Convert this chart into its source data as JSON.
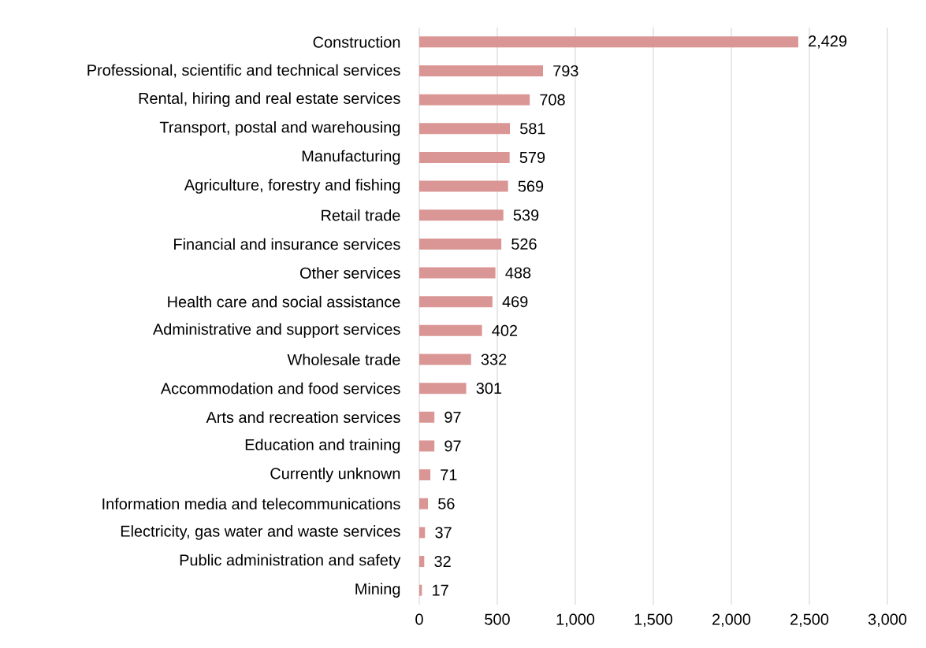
{
  "chart_data": {
    "type": "bar",
    "orientation": "horizontal",
    "value_labels": [
      "2,429",
      "793",
      "708",
      "581",
      "579",
      "569",
      "539",
      "526",
      "488",
      "469",
      "402",
      "332",
      "301",
      "97",
      "97",
      "71",
      "56",
      "37",
      "32",
      "17"
    ],
    "grid": "x",
    "color": "#da9694",
    "categories": [
      "Construction",
      "Professional, scientific and technical services",
      "Rental, hiring and real estate services",
      "Transport, postal and warehousing",
      "Manufacturing",
      "Agriculture, forestry and fishing",
      "Retail trade",
      "Financial and insurance services",
      "Other services",
      "Health care and social assistance",
      "Administrative and support services",
      "Wholesale trade",
      "Accommodation and food services",
      "Arts and recreation services",
      "Education and training",
      "Currently unknown",
      "Information media and telecommunications",
      "Electricity, gas water and waste services",
      "Public administration and safety",
      "Mining"
    ],
    "values": [
      2429,
      793,
      708,
      581,
      579,
      569,
      539,
      526,
      488,
      469,
      402,
      332,
      301,
      97,
      97,
      71,
      56,
      37,
      32,
      17
    ],
    "xlim": [
      0,
      3000
    ],
    "xticks": [
      0,
      500,
      {
        "value": 1000,
        "label": "1,000"
      },
      {
        "value": 1500,
        "label": "1,500"
      },
      {
        "value": 2000,
        "label": "2,000"
      },
      {
        "value": 2500,
        "label": "2,500"
      },
      {
        "value": 3000,
        "label": "3,000"
      }
    ]
  }
}
